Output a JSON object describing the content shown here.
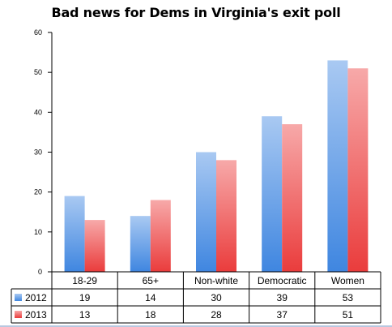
{
  "chart_data": {
    "type": "bar",
    "title": "Bad news for Dems in Virginia's exit poll",
    "categories": [
      "18-29",
      "65+",
      "Non-white",
      "Democratic",
      "Women"
    ],
    "series": [
      {
        "name": "2012",
        "values": [
          19,
          14,
          30,
          39,
          53
        ],
        "color": "#5b9bd5"
      },
      {
        "name": "2013",
        "values": [
          13,
          18,
          28,
          37,
          51
        ],
        "color": "#f05a5a"
      }
    ],
    "ylim": [
      0,
      60
    ],
    "yticks": [
      0,
      10,
      20,
      30,
      40,
      50,
      60
    ],
    "grid": false,
    "legend": "data-table"
  }
}
